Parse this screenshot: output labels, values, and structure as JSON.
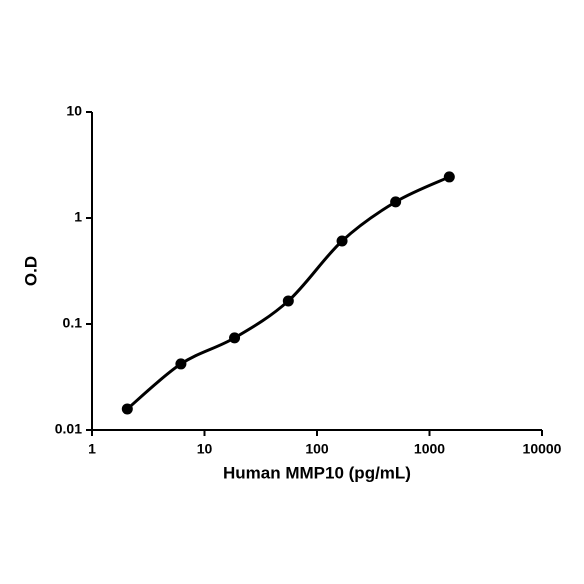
{
  "chart_data": {
    "type": "scatter",
    "xlabel": "Human MMP10 (pg/mL)",
    "ylabel": "O.D",
    "xscale": "log",
    "yscale": "log",
    "smooth_line": true,
    "x": [
      2.06,
      6.17,
      18.5,
      55.6,
      167,
      500,
      1500
    ],
    "series": [
      {
        "color": "#000000",
        "values": [
          0.0158,
          0.042,
          0.074,
          0.165,
          0.607,
          1.42,
          2.44
        ]
      }
    ],
    "xlim": [
      1,
      10000
    ],
    "xticks": [
      1,
      10,
      100,
      1000,
      10000
    ],
    "ylim": [
      0.01,
      10
    ],
    "yticks": [
      0.01,
      0.1,
      1,
      10
    ]
  }
}
